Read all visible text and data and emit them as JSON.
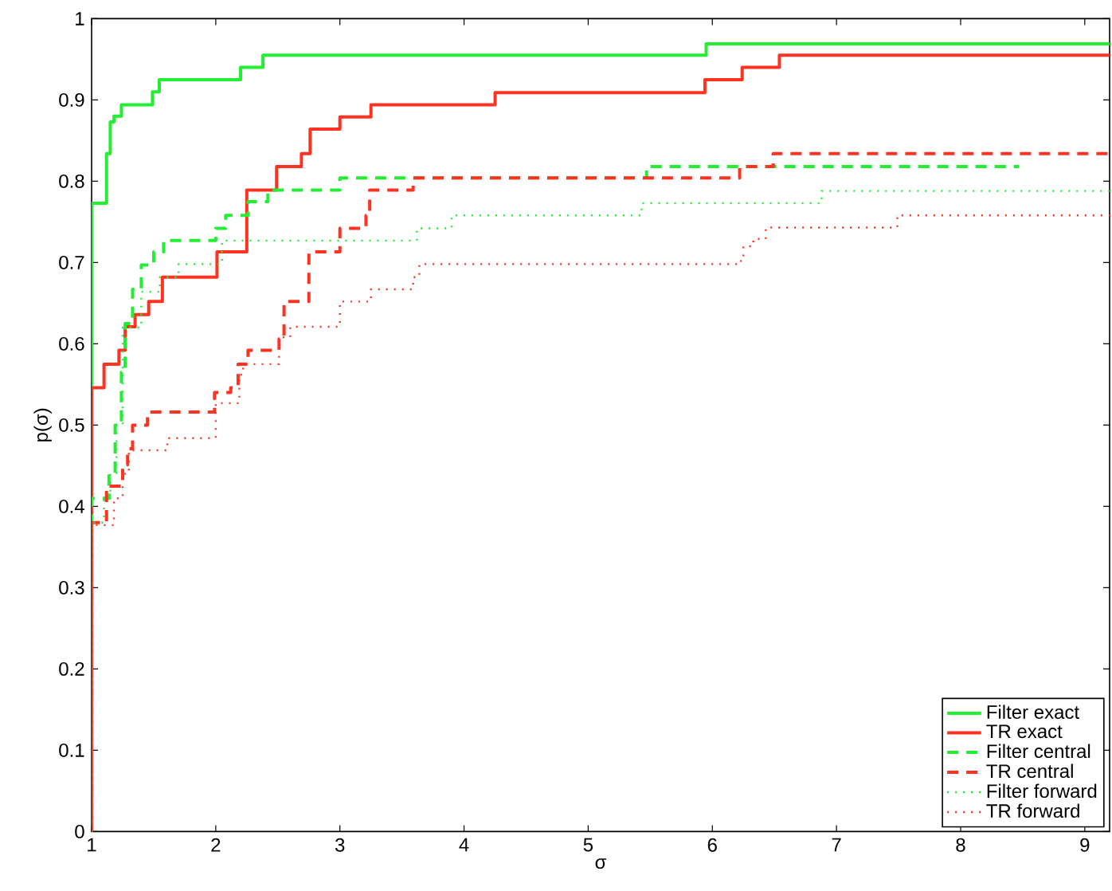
{
  "chart_data": {
    "type": "step",
    "xlabel": "σ",
    "ylabel": "p(σ)",
    "xlim": [
      1,
      9.2
    ],
    "ylim": [
      0,
      1
    ],
    "xticks": [
      1,
      2,
      3,
      4,
      5,
      6,
      7,
      8,
      9
    ],
    "yticks": [
      0,
      0.1,
      0.2,
      0.3,
      0.4,
      0.5,
      0.6,
      0.7,
      0.8,
      0.9,
      1
    ],
    "legend": "bottom right",
    "series": [
      {
        "name": "Filter exact",
        "color": "#22ee33",
        "line_style": "solid",
        "x": [
          1,
          1,
          1.12,
          1.15,
          1.18,
          1.24,
          1.49,
          1.545,
          2.2,
          2.38,
          5.95,
          9.2
        ],
        "values": [
          0,
          0.773,
          0.834,
          0.873,
          0.88,
          0.894,
          0.91,
          0.925,
          0.94,
          0.955,
          0.969,
          0.969
        ]
      },
      {
        "name": "TR exact",
        "color": "#ff3322",
        "line_style": "solid",
        "x": [
          1,
          1,
          1.1,
          1.22,
          1.27,
          1.35,
          1.46,
          1.57,
          2.01,
          2.25,
          2.49,
          2.69,
          2.76,
          3.0,
          3.25,
          4.25,
          5.94,
          6.24,
          6.54,
          9.2
        ],
        "values": [
          0,
          0.546,
          0.575,
          0.592,
          0.621,
          0.636,
          0.652,
          0.682,
          0.713,
          0.789,
          0.818,
          0.834,
          0.864,
          0.879,
          0.894,
          0.909,
          0.925,
          0.94,
          0.955,
          0.955
        ]
      },
      {
        "name": "Filter central",
        "color": "#22ee33",
        "line_style": "dashed",
        "x": [
          1,
          1,
          1.14,
          1.19,
          1.24,
          1.27,
          1.33,
          1.4,
          1.5,
          1.58,
          2.0,
          2.08,
          2.26,
          2.42,
          3.0,
          5.47,
          8.47
        ],
        "values": [
          0,
          0.41,
          0.44,
          0.5,
          0.565,
          0.625,
          0.667,
          0.697,
          0.713,
          0.727,
          0.742,
          0.758,
          0.775,
          0.789,
          0.804,
          0.818,
          0.818
        ]
      },
      {
        "name": "TR central",
        "color": "#ff3322",
        "line_style": "dashed",
        "x": [
          1,
          1,
          1.12,
          1.25,
          1.29,
          1.33,
          1.45,
          1.99,
          2.12,
          2.18,
          2.26,
          2.51,
          2.55,
          2.75,
          3.0,
          3.21,
          3.24,
          3.59,
          6.22,
          6.49,
          9.2
        ],
        "values": [
          0,
          0.38,
          0.425,
          0.451,
          0.471,
          0.5,
          0.516,
          0.54,
          0.546,
          0.575,
          0.592,
          0.606,
          0.652,
          0.713,
          0.742,
          0.758,
          0.789,
          0.804,
          0.818,
          0.834,
          0.834
        ]
      },
      {
        "name": "Filter forward",
        "color": "#22ee33",
        "line_style": "dotted",
        "x": [
          1,
          1,
          1.1,
          1.15,
          1.2,
          1.25,
          1.4,
          1.55,
          1.7,
          2.05,
          3.62,
          3.9,
          5.43,
          6.88,
          9.2
        ],
        "values": [
          0,
          0.38,
          0.41,
          0.44,
          0.5,
          0.62,
          0.664,
          0.682,
          0.698,
          0.727,
          0.742,
          0.758,
          0.773,
          0.788,
          0.788
        ]
      },
      {
        "name": "TR forward",
        "color": "#ff3322",
        "line_style": "dotted",
        "x": [
          1,
          1,
          1.18,
          1.25,
          1.3,
          1.61,
          2.0,
          2.19,
          2.22,
          2.51,
          2.6,
          3.0,
          3.25,
          3.59,
          3.64,
          6.23,
          6.25,
          6.33,
          6.43,
          7.49,
          9.2
        ],
        "values": [
          0,
          0.377,
          0.41,
          0.44,
          0.469,
          0.484,
          0.527,
          0.562,
          0.575,
          0.608,
          0.621,
          0.652,
          0.667,
          0.682,
          0.698,
          0.707,
          0.72,
          0.729,
          0.743,
          0.758,
          0.758
        ]
      }
    ]
  }
}
